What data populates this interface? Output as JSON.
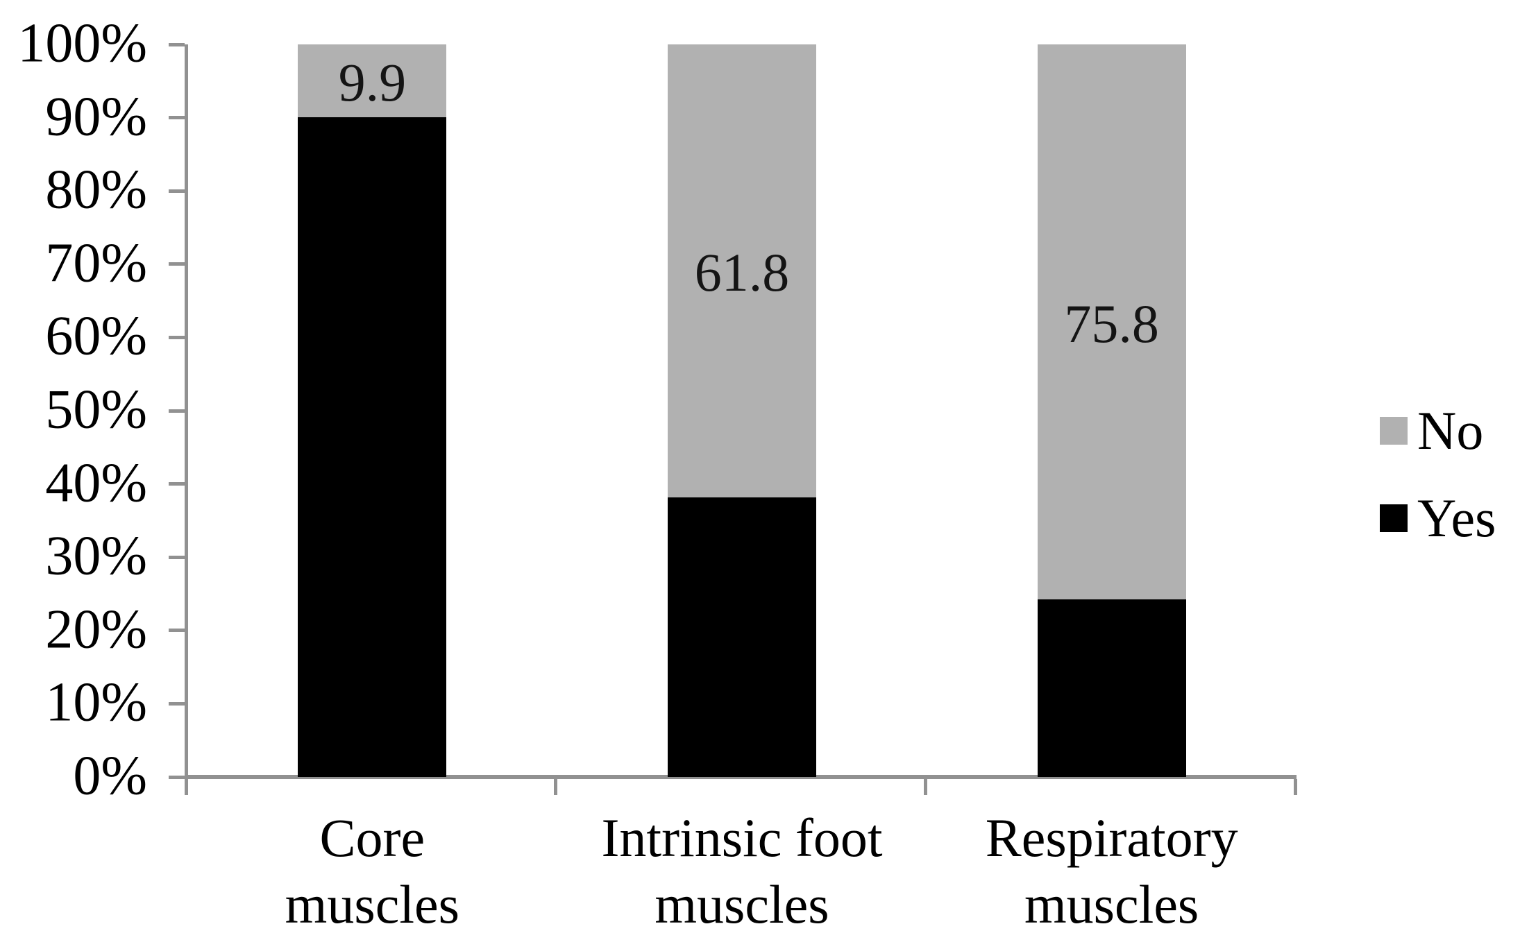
{
  "chart_data": {
    "type": "bar",
    "stacking": "percent",
    "title": "",
    "xlabel": "",
    "ylabel": "",
    "ylim": [
      0,
      100
    ],
    "y_tick_labels": [
      "100%",
      "90%",
      "80%",
      "70%",
      "60%",
      "50%",
      "40%",
      "30%",
      "20%",
      "10%",
      "0%"
    ],
    "grid": false,
    "legend_position": "right",
    "categories": [
      "Core muscles",
      "Intrinsic foot muscles",
      "Respiratory muscles"
    ],
    "category_label_lines": [
      [
        "Core",
        "muscles"
      ],
      [
        "Intrinsic foot",
        "muscles"
      ],
      [
        "Respiratory",
        "muscles"
      ]
    ],
    "series": [
      {
        "name": "Yes",
        "color": "#000000",
        "values": [
          90.1,
          38.2,
          24.2
        ]
      },
      {
        "name": "No",
        "color": "#b1b1b1",
        "values": [
          9.9,
          61.8,
          75.8
        ]
      }
    ],
    "segment_labels": {
      "on_series": "No",
      "texts": [
        "9.9",
        "61.8",
        "75.8"
      ]
    },
    "legend": {
      "items": [
        {
          "label": "No",
          "color": "#b1b1b1"
        },
        {
          "label": "Yes",
          "color": "#000000"
        }
      ]
    },
    "colors": {
      "axis": "#919191",
      "background": "#ffffff",
      "label_text": "#141414"
    }
  }
}
